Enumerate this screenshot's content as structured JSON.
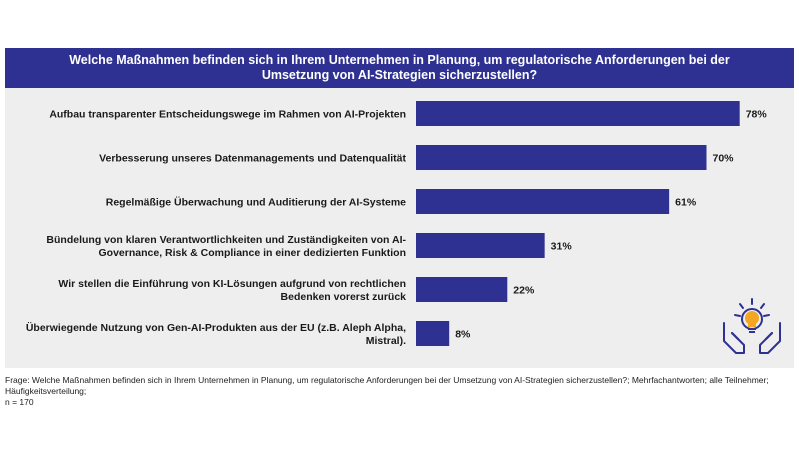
{
  "colors": {
    "header_bg": "#2e3192",
    "bar": "#2e3192",
    "panel_bg": "#eeeeee",
    "icon_primary": "#2e3192",
    "icon_accent": "#f5a623"
  },
  "header": {
    "title_line1": "Welche Maßnahmen befinden sich in Ihrem Unternehmen in Planung, um regulatorische Anforderungen bei der",
    "title_line2": "Umsetzung von AI-Strategien sicherzustellen?"
  },
  "chart_data": {
    "type": "bar",
    "orientation": "horizontal",
    "title": "Welche Maßnahmen befinden sich in Ihrem Unternehmen in Planung, um regulatorische Anforderungen bei der Umsetzung von AI-Strategien sicherzustellen?",
    "xlim": [
      0,
      100
    ],
    "unit": "%",
    "categories": [
      [
        "Aufbau transparenter Entscheidungswege im Rahmen von AI-Projekten"
      ],
      [
        "Verbesserung unseres Datenmanagements und Datenqualität"
      ],
      [
        "Regelmäßige Überwachung und Auditierung der AI-Systeme"
      ],
      [
        "Bündelung von klaren Verantwortlichkeiten und Zuständigkeiten von AI-",
        "Governance, Risk & Compliance in einer dedizierten Funktion"
      ],
      [
        "Wir stellen die Einführung von KI-Lösungen aufgrund von rechtlichen",
        "Bedenken vorerst zurück"
      ],
      [
        "Überwiegende Nutzung von Gen-AI-Produkten aus der EU (z.B. Aleph Alpha,",
        "Mistral)."
      ]
    ],
    "values": [
      78,
      70,
      61,
      31,
      22,
      8
    ],
    "value_labels": [
      "78%",
      "70%",
      "61%",
      "31%",
      "22%",
      "8%"
    ]
  },
  "footnote": {
    "line1": "Frage: Welche Maßnahmen befinden sich in Ihrem Unternehmen in Planung, um regulatorische Anforderungen bei der Umsetzung von AI-Strategien sicherzustellen?; Mehrfachantworten; alle Teilnehmer; Häufigkeitsverteilung;",
    "line2": "n = 170"
  },
  "icon": {
    "name": "hands-gear-lightbulb-icon"
  }
}
